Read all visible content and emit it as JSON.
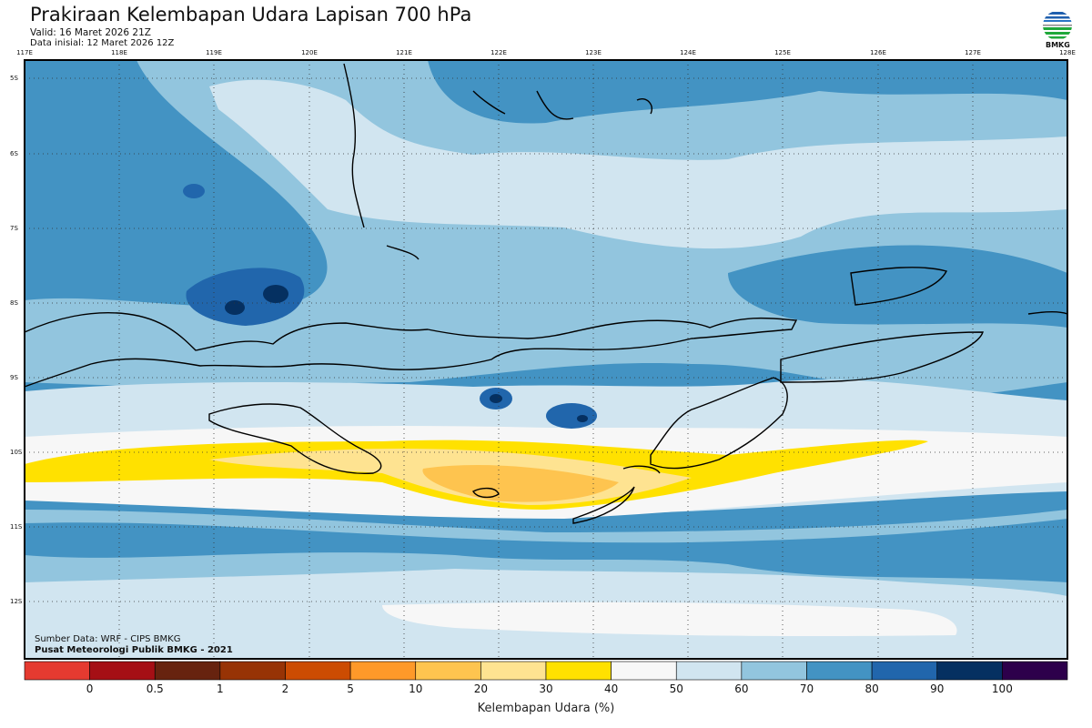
{
  "header": {
    "title": "Prakiraan Kelembapan Udara Lapisan 700 hPa",
    "valid": "Valid: 16 Maret 2026 21Z",
    "initial": "Data inisial: 12 Maret 2026 12Z",
    "logo_text": "BMKG"
  },
  "map": {
    "lon_labels": [
      "117E",
      "118E",
      "119E",
      "120E",
      "121E",
      "122E",
      "123E",
      "124E",
      "125E",
      "126E",
      "127E",
      "128E"
    ],
    "lat_labels": [
      "5S",
      "6S",
      "7S",
      "8S",
      "9S",
      "10S",
      "11S",
      "12S"
    ],
    "source": "Sumber Data: WRF - CIPS BMKG",
    "credit": "Pusat Meteorologi Publik BMKG - 2021"
  },
  "colorbar": {
    "labels": [
      "0",
      "0.5",
      "1",
      "2",
      "5",
      "10",
      "20",
      "30",
      "40",
      "50",
      "60",
      "70",
      "80",
      "90",
      "100"
    ],
    "colors": [
      "#e53a30",
      "#a50f15",
      "#67230f",
      "#973305",
      "#cc4c02",
      "#fe9929",
      "#fec44f",
      "#fee391",
      "#ffe100",
      "#f7f7f7",
      "#d1e5f0",
      "#92c5de",
      "#4393c3",
      "#2166ac",
      "#053061",
      "#2d004b"
    ],
    "xlabel": "Kelembapan Udara (%)"
  }
}
